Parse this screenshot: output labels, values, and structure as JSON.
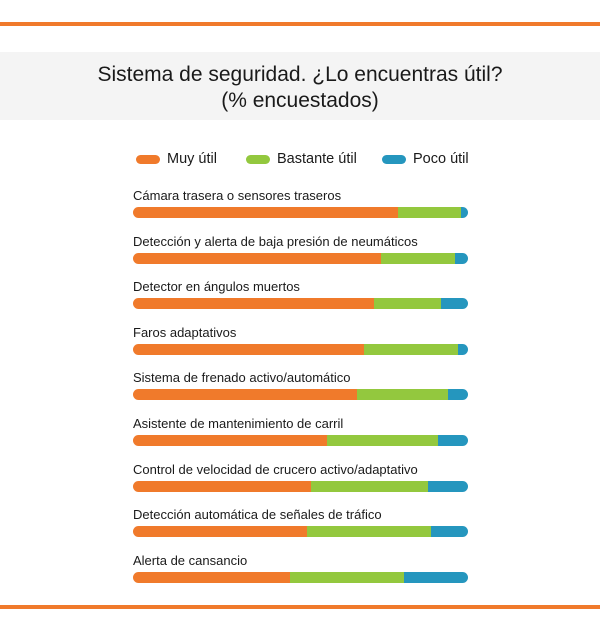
{
  "title_line1": "Sistema de seguridad. ¿Lo encuentras útil?",
  "title_line2": "(% encuestados)",
  "colors": {
    "accent_rule": "#f07a2b",
    "muy": "#f07a2b",
    "bastante": "#93c83e",
    "poco": "#2596be"
  },
  "legend": [
    "Muy útil",
    "Bastante útil",
    "Poco útil"
  ],
  "chart_data": {
    "type": "bar",
    "orientation": "horizontal",
    "stacked": true,
    "unit": "%",
    "categories": [
      "Cámara trasera o sensores traseros",
      "Detección y alerta de baja presión de neumáticos",
      "Detector en ángulos muertos",
      "Faros adaptativos",
      "Sistema de frenado activo/automático",
      "Asistente de mantenimiento de carril",
      "Control de velocidad de crucero activo/adaptativo",
      "Detección automática de señales de tráfico",
      "Alerta de cansancio"
    ],
    "series": [
      {
        "name": "Muy útil",
        "values": [
          79,
          74,
          72,
          69,
          67,
          58,
          53,
          52,
          47
        ]
      },
      {
        "name": "Bastante útil",
        "values": [
          19,
          22,
          20,
          28,
          27,
          33,
          35,
          37,
          34
        ]
      },
      {
        "name": "Poco útil",
        "values": [
          2,
          4,
          8,
          3,
          6,
          9,
          12,
          11,
          19
        ]
      }
    ]
  }
}
